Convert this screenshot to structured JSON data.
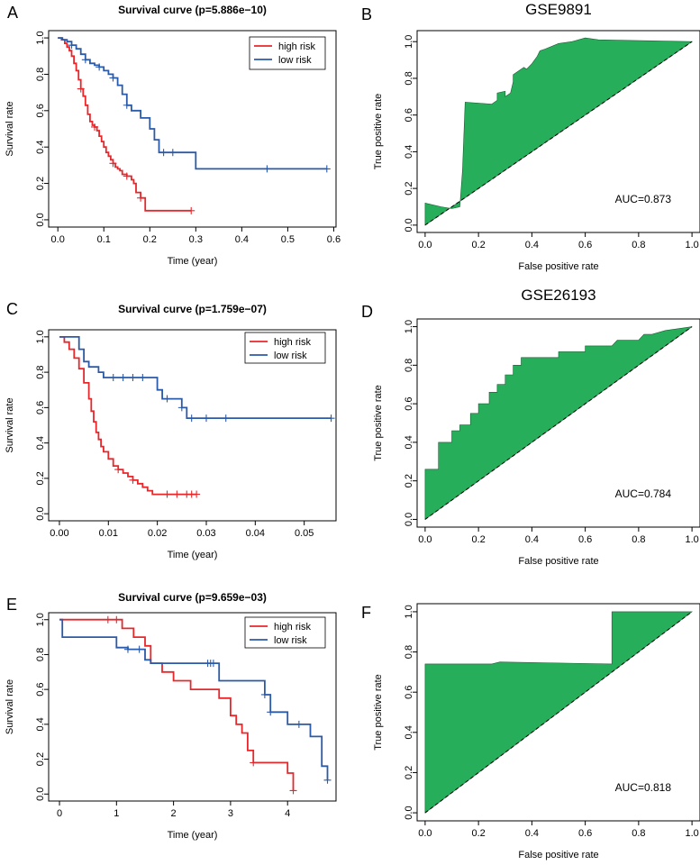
{
  "colors": {
    "high_risk": "#e8272b",
    "low_risk": "#2b5aa8",
    "roc_fill": "#27ae5a",
    "axis": "#000000"
  },
  "chart_data": [
    {
      "panel": "A",
      "type": "line",
      "subtype": "survival",
      "title": "Survival curve (p=5.886e−10)",
      "xlabel": "Time (year)",
      "ylabel": "Survival rate",
      "xlim": [
        0,
        0.6
      ],
      "ylim": [
        0,
        1
      ],
      "xticks": [
        "0.0",
        "0.1",
        "0.2",
        "0.3",
        "0.4",
        "0.5",
        "0.6"
      ],
      "yticks": [
        "0.0",
        "0.2",
        "0.4",
        "0.6",
        "0.8",
        "1.0"
      ],
      "legend": [
        "high risk",
        "low risk"
      ],
      "legend_position": "top-right",
      "series": [
        {
          "name": "high risk",
          "color": "#e8272b",
          "x": [
            0,
            0.008,
            0.015,
            0.02,
            0.025,
            0.03,
            0.035,
            0.04,
            0.045,
            0.05,
            0.055,
            0.06,
            0.065,
            0.07,
            0.075,
            0.08,
            0.085,
            0.09,
            0.095,
            0.1,
            0.105,
            0.11,
            0.115,
            0.12,
            0.125,
            0.13,
            0.135,
            0.14,
            0.15,
            0.16,
            0.165,
            0.17,
            0.18,
            0.19,
            0.29
          ],
          "y": [
            1.0,
            0.99,
            0.97,
            0.95,
            0.93,
            0.9,
            0.86,
            0.82,
            0.77,
            0.72,
            0.68,
            0.63,
            0.58,
            0.54,
            0.52,
            0.51,
            0.49,
            0.46,
            0.43,
            0.4,
            0.37,
            0.35,
            0.33,
            0.31,
            0.29,
            0.28,
            0.27,
            0.25,
            0.24,
            0.22,
            0.2,
            0.15,
            0.12,
            0.05,
            0.05
          ],
          "censor_x": [
            0.05,
            0.08,
            0.12,
            0.15,
            0.18,
            0.29
          ]
        },
        {
          "name": "low risk",
          "color": "#2b5aa8",
          "x": [
            0,
            0.01,
            0.02,
            0.03,
            0.04,
            0.05,
            0.06,
            0.07,
            0.08,
            0.09,
            0.1,
            0.11,
            0.12,
            0.13,
            0.14,
            0.15,
            0.16,
            0.18,
            0.2,
            0.21,
            0.22,
            0.25,
            0.3,
            0.31,
            0.455,
            0.585
          ],
          "y": [
            1.0,
            0.99,
            0.98,
            0.96,
            0.94,
            0.91,
            0.88,
            0.86,
            0.85,
            0.84,
            0.82,
            0.8,
            0.78,
            0.74,
            0.69,
            0.63,
            0.6,
            0.56,
            0.5,
            0.44,
            0.37,
            0.37,
            0.28,
            0.28,
            0.28,
            0.28
          ],
          "censor_x": [
            0.03,
            0.06,
            0.09,
            0.12,
            0.15,
            0.23,
            0.25,
            0.455,
            0.585
          ]
        }
      ]
    },
    {
      "panel": "B",
      "type": "area",
      "subtype": "roc",
      "title": "GSE9891",
      "xlabel": "False positive rate",
      "ylabel": "True positive rate",
      "xlim": [
        0,
        1
      ],
      "ylim": [
        0,
        1
      ],
      "xticks": [
        "0.0",
        "0.2",
        "0.4",
        "0.6",
        "0.8",
        "1.0"
      ],
      "yticks": [
        "0.0",
        "0.2",
        "0.4",
        "0.6",
        "0.8",
        "1.0"
      ],
      "annotation": "AUC=0.873",
      "fpr": [
        0,
        0,
        0.06,
        0.1,
        0.13,
        0.14,
        0.15,
        0.15,
        0.25,
        0.27,
        0.27,
        0.3,
        0.3,
        0.32,
        0.33,
        0.33,
        0.35,
        0.37,
        0.38,
        0.4,
        0.42,
        0.43,
        0.45,
        0.5,
        0.55,
        0.6,
        0.65,
        1.0
      ],
      "tpr": [
        0,
        0.12,
        0.1,
        0.09,
        0.1,
        0.3,
        0.67,
        0.67,
        0.66,
        0.68,
        0.72,
        0.73,
        0.7,
        0.72,
        0.78,
        0.82,
        0.84,
        0.86,
        0.85,
        0.88,
        0.92,
        0.95,
        0.96,
        0.99,
        1.0,
        1.02,
        1.01,
        1.0
      ]
    },
    {
      "panel": "C",
      "type": "line",
      "subtype": "survival",
      "title": "Survival curve (p=1.759e−07)",
      "xlabel": "Time (year)",
      "ylabel": "Survival rate",
      "xlim": [
        0,
        0.055
      ],
      "ylim": [
        0,
        1
      ],
      "xticks": [
        "0.00",
        "0.01",
        "0.02",
        "0.03",
        "0.04",
        "0.05"
      ],
      "yticks": [
        "0.0",
        "0.2",
        "0.4",
        "0.6",
        "0.8",
        "1.0"
      ],
      "legend": [
        "high risk",
        "low risk"
      ],
      "legend_position": "top-right",
      "series": [
        {
          "name": "high risk",
          "color": "#e8272b",
          "x": [
            0,
            0.001,
            0.002,
            0.003,
            0.004,
            0.005,
            0.006,
            0.0065,
            0.007,
            0.0075,
            0.008,
            0.0085,
            0.009,
            0.01,
            0.011,
            0.012,
            0.013,
            0.014,
            0.015,
            0.016,
            0.017,
            0.018,
            0.019,
            0.028
          ],
          "y": [
            1.0,
            0.97,
            0.93,
            0.88,
            0.82,
            0.74,
            0.65,
            0.58,
            0.52,
            0.46,
            0.42,
            0.38,
            0.35,
            0.31,
            0.27,
            0.25,
            0.23,
            0.21,
            0.19,
            0.17,
            0.15,
            0.13,
            0.11,
            0.11
          ],
          "censor_x": [
            0.012,
            0.015,
            0.022,
            0.024,
            0.026,
            0.027,
            0.028
          ]
        },
        {
          "name": "low risk",
          "color": "#2b5aa8",
          "x": [
            0,
            0.003,
            0.004,
            0.005,
            0.006,
            0.007,
            0.008,
            0.009,
            0.016,
            0.02,
            0.021,
            0.023,
            0.025,
            0.026,
            0.0555
          ],
          "y": [
            1.0,
            1.0,
            0.93,
            0.86,
            0.83,
            0.83,
            0.8,
            0.77,
            0.77,
            0.7,
            0.65,
            0.65,
            0.6,
            0.54,
            0.54
          ],
          "censor_x": [
            0.011,
            0.013,
            0.015,
            0.017,
            0.022,
            0.025,
            0.027,
            0.03,
            0.034,
            0.0555
          ]
        }
      ]
    },
    {
      "panel": "D",
      "type": "area",
      "subtype": "roc",
      "title": "GSE26193",
      "xlabel": "False positive rate",
      "ylabel": "True positive rate",
      "xlim": [
        0,
        1
      ],
      "ylim": [
        0,
        1
      ],
      "xticks": [
        "0.0",
        "0.2",
        "0.4",
        "0.6",
        "0.8",
        "1.0"
      ],
      "yticks": [
        "0.0",
        "0.2",
        "0.4",
        "0.6",
        "0.8",
        "1.0"
      ],
      "annotation": "AUC=0.784",
      "fpr": [
        0,
        0,
        0.05,
        0.05,
        0.1,
        0.1,
        0.13,
        0.13,
        0.17,
        0.17,
        0.2,
        0.2,
        0.24,
        0.24,
        0.27,
        0.27,
        0.3,
        0.3,
        0.33,
        0.33,
        0.36,
        0.36,
        0.45,
        0.5,
        0.5,
        0.6,
        0.6,
        0.7,
        0.72,
        0.8,
        0.82,
        0.85,
        0.9,
        1.0
      ],
      "tpr": [
        0,
        0.26,
        0.26,
        0.4,
        0.4,
        0.46,
        0.46,
        0.49,
        0.49,
        0.55,
        0.55,
        0.6,
        0.6,
        0.66,
        0.66,
        0.7,
        0.7,
        0.75,
        0.75,
        0.8,
        0.8,
        0.84,
        0.84,
        0.84,
        0.87,
        0.87,
        0.9,
        0.9,
        0.93,
        0.93,
        0.96,
        0.96,
        0.98,
        1.0
      ]
    },
    {
      "panel": "E",
      "type": "line",
      "subtype": "survival",
      "title": "Survival curve (p=9.659e−03)",
      "xlabel": "Time (year)",
      "ylabel": "Survival rate",
      "xlim": [
        0,
        4.7
      ],
      "ylim": [
        0,
        1
      ],
      "xticks": [
        "0",
        "1",
        "2",
        "3",
        "4"
      ],
      "yticks": [
        "0.0",
        "0.2",
        "0.4",
        "0.6",
        "0.8",
        "1.0"
      ],
      "legend": [
        "high risk",
        "low risk"
      ],
      "legend_position": "top-right",
      "series": [
        {
          "name": "high risk",
          "color": "#e8272b",
          "x": [
            0,
            1.0,
            1.1,
            1.3,
            1.5,
            1.6,
            1.8,
            2.0,
            2.3,
            2.6,
            2.8,
            3.0,
            3.1,
            3.2,
            3.3,
            3.4,
            3.9,
            4.0,
            4.1
          ],
          "y": [
            1.0,
            1.0,
            0.95,
            0.9,
            0.85,
            0.75,
            0.7,
            0.65,
            0.6,
            0.6,
            0.55,
            0.45,
            0.4,
            0.35,
            0.25,
            0.18,
            0.18,
            0.12,
            0.02
          ],
          "censor_x": [
            0.85,
            1.0,
            3.4,
            4.1
          ]
        },
        {
          "name": "low risk",
          "color": "#2b5aa8",
          "x": [
            0,
            0.05,
            0.7,
            1.0,
            1.2,
            1.5,
            1.6,
            2.0,
            2.7,
            2.8,
            3.5,
            3.6,
            3.7,
            4.0,
            4.4,
            4.6,
            4.7
          ],
          "y": [
            1.0,
            0.9,
            0.9,
            0.84,
            0.83,
            0.77,
            0.75,
            0.75,
            0.75,
            0.65,
            0.65,
            0.57,
            0.47,
            0.4,
            0.33,
            0.16,
            0.08
          ],
          "censor_x": [
            1.2,
            1.4,
            2.6,
            2.65,
            2.7,
            3.6,
            3.7,
            4.2,
            4.7
          ]
        }
      ]
    },
    {
      "panel": "F",
      "type": "area",
      "subtype": "roc",
      "title": "",
      "xlabel": "False positive rate",
      "ylabel": "True positive rate",
      "xlim": [
        0,
        1
      ],
      "ylim": [
        0,
        1
      ],
      "xticks": [
        "0.0",
        "0.2",
        "0.4",
        "0.6",
        "0.8",
        "1.0"
      ],
      "yticks": [
        "0.0",
        "0.2",
        "0.4",
        "0.6",
        "0.8",
        "1.0"
      ],
      "annotation": "AUC=0.818",
      "fpr": [
        0,
        0,
        0.25,
        0.28,
        0.7,
        0.7,
        1.0
      ],
      "tpr": [
        0,
        0.74,
        0.74,
        0.75,
        0.74,
        1.0,
        1.0
      ]
    }
  ],
  "panel_labels": [
    "A",
    "B",
    "C",
    "D",
    "E",
    "F"
  ]
}
